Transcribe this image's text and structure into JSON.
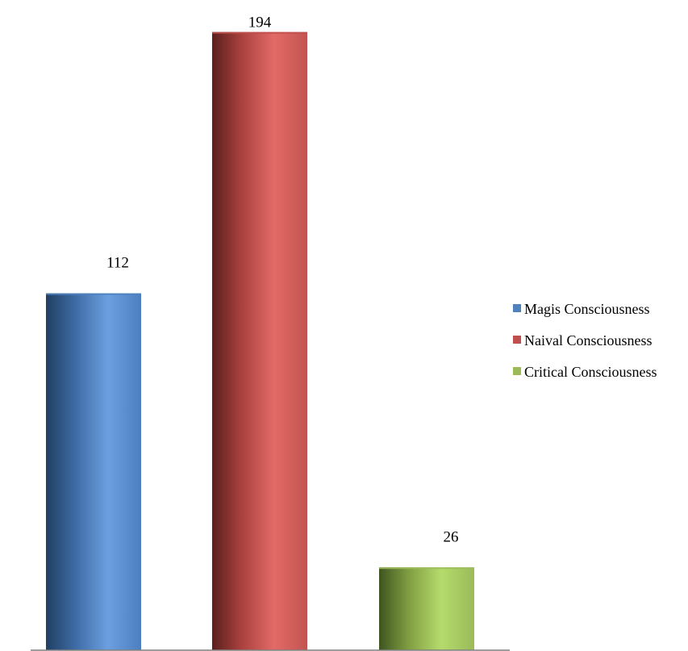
{
  "chart_data": {
    "type": "bar",
    "title": "",
    "xlabel": "",
    "ylabel": "",
    "ylim": [
      0,
      200
    ],
    "grid": false,
    "legend_position": "right",
    "categories": [
      "Magis Consciousness",
      "Naival Consciousness",
      "Critical Consciousness"
    ],
    "values": [
      112,
      194,
      26
    ],
    "data_labels": [
      "112",
      "194",
      "26"
    ],
    "series_colors": [
      "#4F81BD",
      "#C0504D",
      "#9BBB59"
    ],
    "legend": {
      "items": [
        {
          "label": "Magis Consciousness",
          "color": "#4F81BD"
        },
        {
          "label": "Naival Consciousness",
          "color": "#C0504D"
        },
        {
          "label": "Critical Consciousness",
          "color": "#9BBB59"
        }
      ]
    }
  }
}
